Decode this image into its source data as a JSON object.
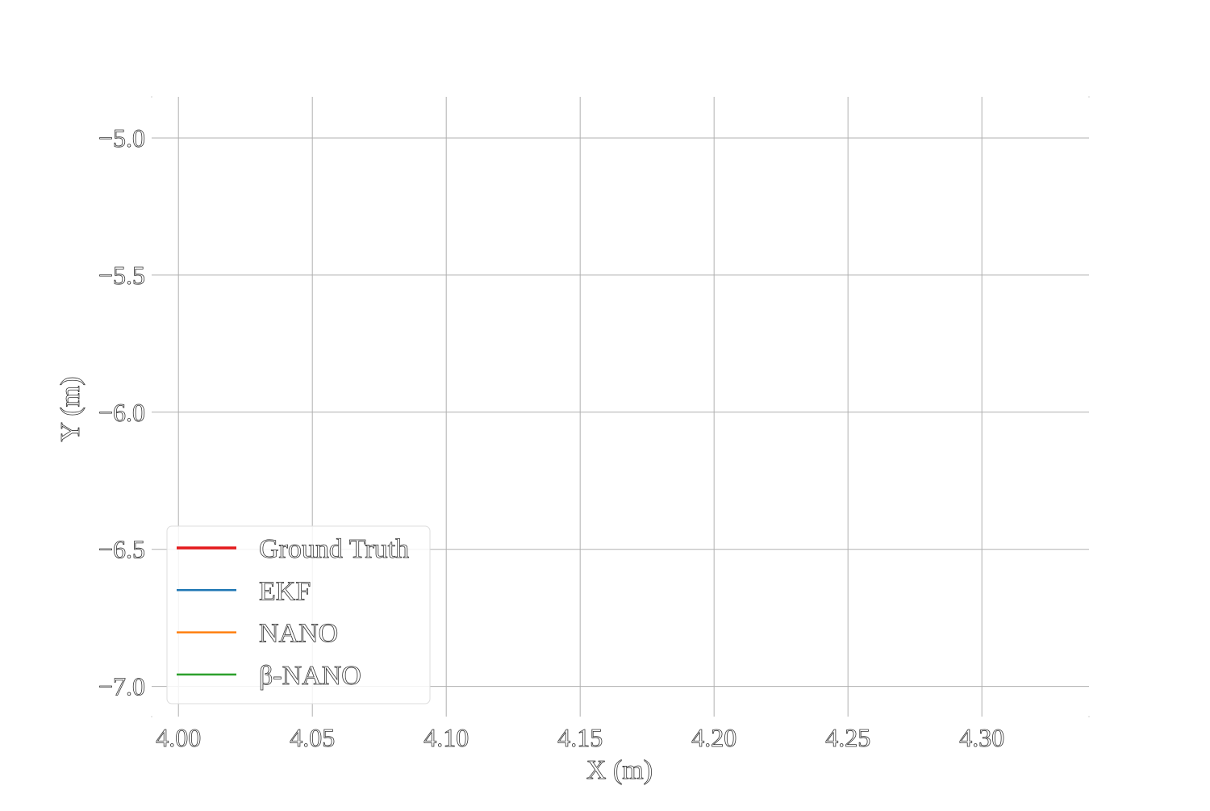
{
  "chart_data": {
    "type": "line",
    "title": "",
    "xlabel": "X (m)",
    "ylabel": "Y (m)",
    "xlim": [
      3.99,
      4.34
    ],
    "ylim": [
      -7.11,
      -4.85
    ],
    "xticks": [
      4.0,
      4.05,
      4.1,
      4.15,
      4.2,
      4.25,
      4.3
    ],
    "xtick_labels": [
      "4.00",
      "4.05",
      "4.10",
      "4.15",
      "4.20",
      "4.25",
      "4.30"
    ],
    "yticks": [
      -5.0,
      -5.5,
      -6.0,
      -6.5,
      -7.0
    ],
    "ytick_labels": [
      "−5.0",
      "−5.5",
      "−6.0",
      "−6.5",
      "−7.0"
    ],
    "grid": true,
    "legend_position": "lower-left",
    "series": [
      {
        "name": "Ground Truth",
        "color": "#e41a1c",
        "x": [],
        "y": []
      },
      {
        "name": "EKF",
        "color": "#1f77b4",
        "x": [],
        "y": []
      },
      {
        "name": "NANO",
        "color": "#ff7f0e",
        "x": [],
        "y": []
      },
      {
        "name": "β-NANO",
        "color": "#2ca02c",
        "x": [],
        "y": []
      }
    ]
  }
}
